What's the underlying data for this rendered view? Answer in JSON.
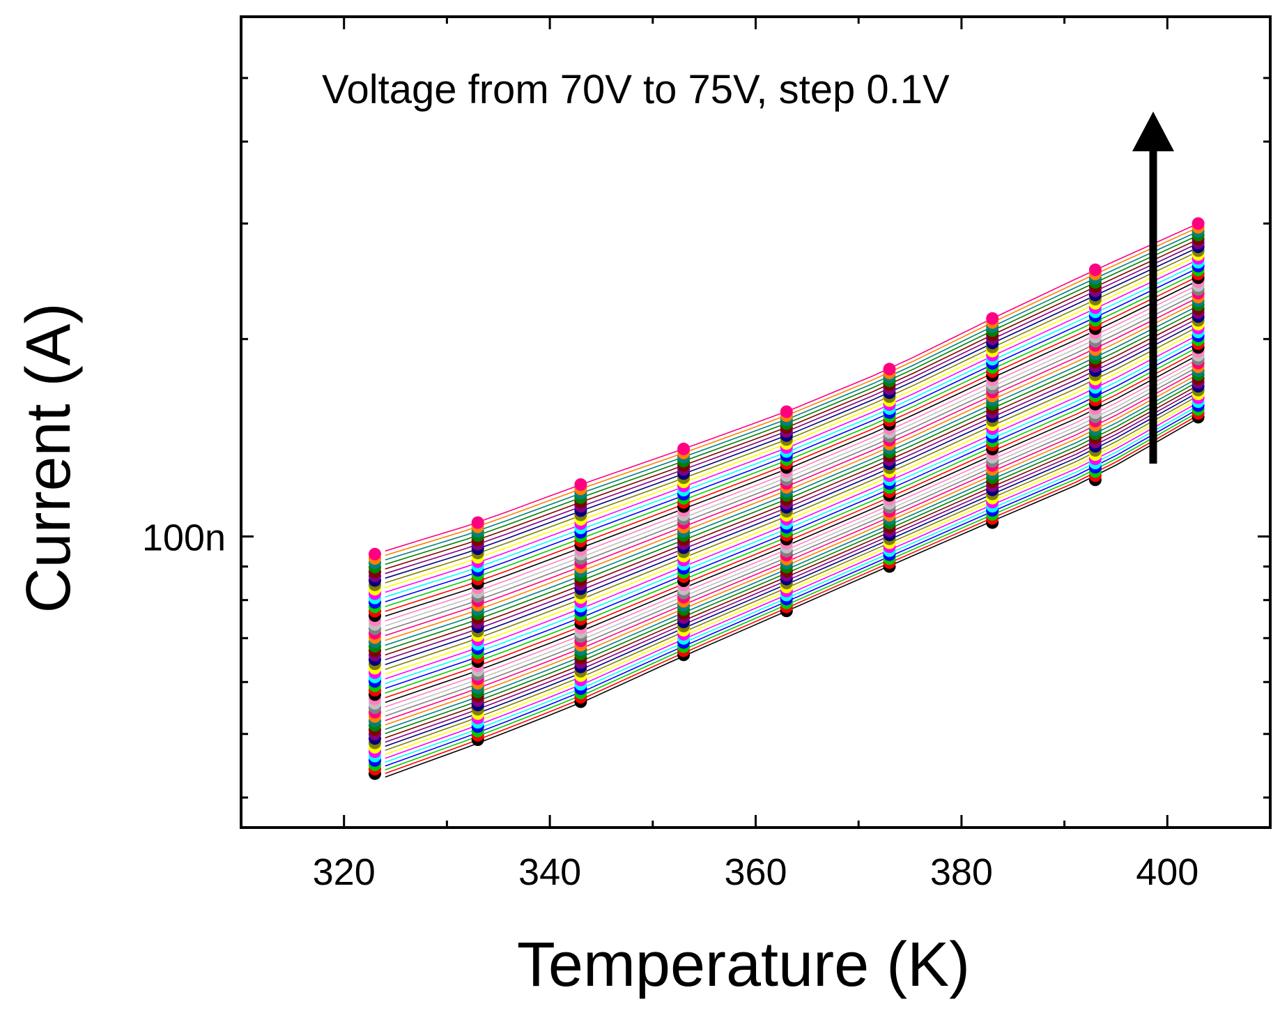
{
  "chart_data": {
    "type": "scatter",
    "title": "",
    "annotation": "Voltage from 70V to 75V, step 0.1V",
    "xlabel": "Temperature (K)",
    "ylabel": "Current (A)",
    "xlim": [
      310,
      410
    ],
    "ylim": [
      3.6e-08,
      6.2e-07
    ],
    "yscale": "log",
    "x_ticks": [
      320,
      340,
      360,
      380,
      400
    ],
    "x_tick_labels": [
      "320",
      "340",
      "360",
      "380",
      "400"
    ],
    "y_major_ticks": [
      1e-07
    ],
    "y_tick_labels": [
      "100n"
    ],
    "y_minor_ticks": [
      4e-08,
      5e-08,
      6e-08,
      7e-08,
      8e-08,
      9e-08,
      2e-07,
      3e-07,
      4e-07,
      5e-07
    ],
    "x": [
      323,
      333,
      343,
      353,
      363,
      373,
      383,
      393,
      403
    ],
    "series_count": 51,
    "voltage_start": 70,
    "voltage_end": 75,
    "voltage_step": 0.1,
    "current_at_70V": [
      4.35e-08,
      4.9e-08,
      5.6e-08,
      6.6e-08,
      7.7e-08,
      9e-08,
      1.05e-07,
      1.22e-07,
      1.52e-07
    ],
    "current_at_75V": [
      9.4e-08,
      1.05e-07,
      1.2e-07,
      1.36e-07,
      1.55e-07,
      1.8e-07,
      2.15e-07,
      2.55e-07,
      3e-07
    ],
    "fit_x_range": [
      324,
      403
    ],
    "fit_current_at_70V": [
      4e-08,
      1.5e-07
    ],
    "colors": [
      "#000000",
      "#ff0000",
      "#00cc00",
      "#0000ff",
      "#00ffff",
      "#ff00ff",
      "#ffff00",
      "#808000",
      "#000080",
      "#800080",
      "#800000",
      "#008000",
      "#008080",
      "#ff8000",
      "#ff0080",
      "#808080",
      "#c0c0c0",
      "#ff80c0"
    ],
    "arrow_direction": "up",
    "legend": "none",
    "grid": false
  }
}
